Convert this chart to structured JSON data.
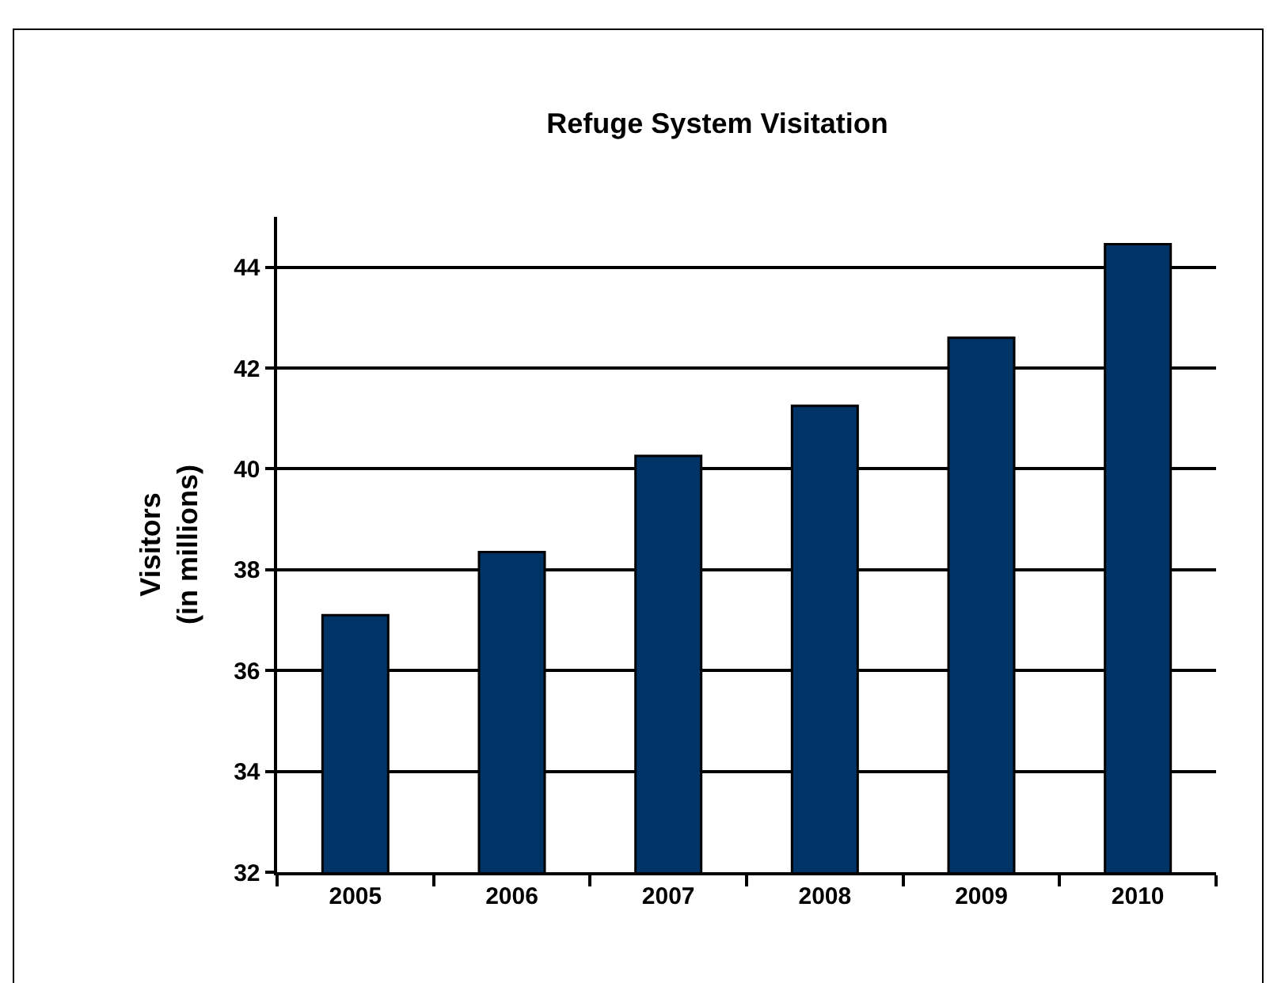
{
  "chart_data": {
    "type": "bar",
    "title": "Refuge System Visitation",
    "ylabel": "Visitors\n(in millions)",
    "categories": [
      "2005",
      "2006",
      "2007",
      "2008",
      "2009",
      "2010"
    ],
    "values": [
      37.1,
      38.35,
      40.26,
      41.25,
      42.6,
      44.46
    ],
    "color": "#003366",
    "ylim": [
      32,
      45
    ],
    "yticks": [
      32,
      34,
      36,
      38,
      40,
      42,
      44
    ],
    "grid": "y",
    "legend": false
  }
}
